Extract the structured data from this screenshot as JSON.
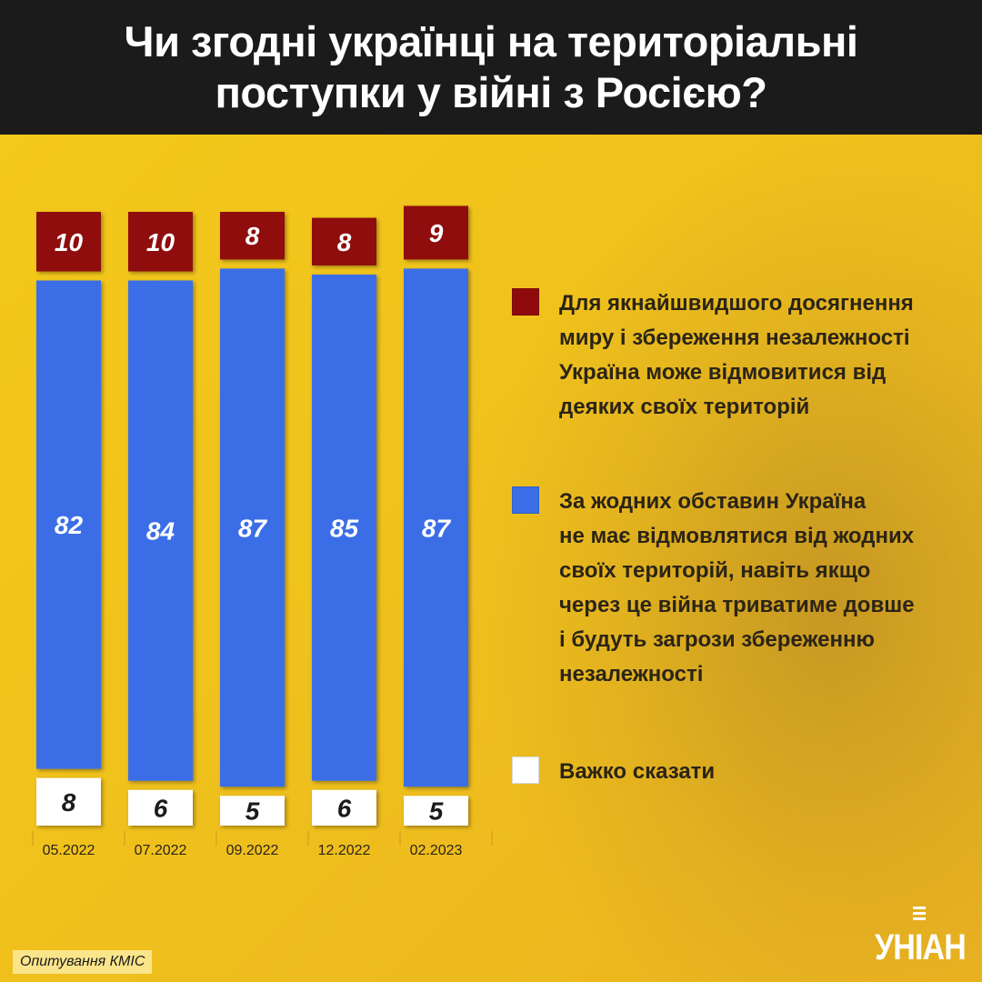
{
  "title": "Чи згодні українці на територіальні\nпоступки у війні з Росією?",
  "legend": [
    {
      "label": "Для якнайшвидшого досягнення\nмиру і збереження незалежності\nУкраїна може відмовитися від\nдеяких своїх територій",
      "color": "#8f0b0b"
    },
    {
      "label": "За жодних обставин Україна\nне має відмовлятися від жодних\nсвоїх територій, навіть якщо\nчерез це війна триватиме довше\nі будуть загрози збереженню\nнезалежності",
      "color": "#3b6ee6"
    },
    {
      "label": "Важко сказати",
      "color": "#ffffff"
    }
  ],
  "source": "Опитування КМІС",
  "logo": "УНІАН",
  "chart_data": {
    "type": "bar",
    "stacked": true,
    "categories": [
      "05.2022",
      "07.2022",
      "09.2022",
      "12.2022",
      "02.2023"
    ],
    "series": [
      {
        "name": "Для якнайшвидшого досягнення миру і збереження незалежності Україна може відмовитися від деяких своїх територій",
        "values": [
          10,
          10,
          8,
          8,
          9
        ],
        "color": "#8f0b0b"
      },
      {
        "name": "За жодних обставин Україна не має відмовлятися від жодних своїх територій, навіть якщо через це війна триватиме довше і будуть загрози збереженню незалежності",
        "values": [
          82,
          84,
          87,
          85,
          87
        ],
        "color": "#3b6ee6"
      },
      {
        "name": "Важко сказати",
        "values": [
          8,
          6,
          5,
          6,
          5
        ],
        "color": "#ffffff"
      }
    ],
    "ylim": [
      0,
      100
    ]
  }
}
